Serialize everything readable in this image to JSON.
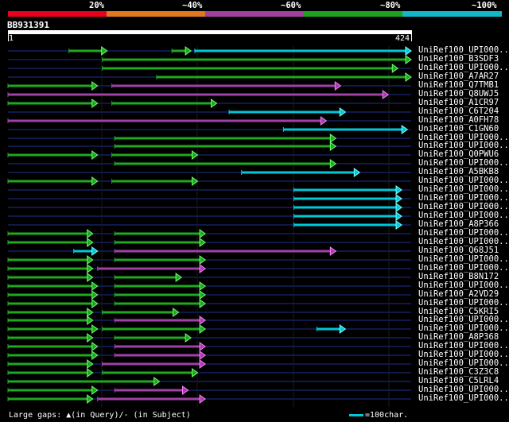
{
  "legend": {
    "labels": [
      "20%",
      "~40%",
      "~60%",
      "~80%",
      "~100%"
    ],
    "colors": [
      "#e8001c",
      "#e07820",
      "#a040a0",
      "#20a020",
      "#10b8c8"
    ]
  },
  "query": {
    "name": "BB931391",
    "start": "1",
    "end": "424",
    "length": 424
  },
  "colors": {
    "c40": "#20a820",
    "c60": "#a040a8",
    "c100": "#00c8d8",
    "track": "#101848",
    "bright40": "#6fff6f",
    "bright60": "#ff80ff",
    "bright100": "#80ffff"
  },
  "hits": [
    {
      "name": "UniRef100_UPI000..",
      "segs": [
        [
          65,
          105,
          "g"
        ],
        [
          173,
          193,
          "g"
        ],
        [
          197,
          424,
          "c"
        ]
      ]
    },
    {
      "name": "UniRef100_B3SDF3",
      "segs": [
        [
          100,
          424,
          "g"
        ]
      ]
    },
    {
      "name": "UniRef100_UPI000..",
      "segs": [
        [
          100,
          410,
          "g"
        ]
      ]
    },
    {
      "name": "UniRef100_A7AR27",
      "segs": [
        [
          157,
          424,
          "g"
        ]
      ]
    },
    {
      "name": "UniRef100_Q7TMB1",
      "segs": [
        [
          1,
          95,
          "g"
        ],
        [
          110,
          350,
          "m"
        ]
      ]
    },
    {
      "name": "UniRef100_Q8UWJ5",
      "segs": [
        [
          1,
          400,
          "m"
        ]
      ]
    },
    {
      "name": "UniRef100_A1CR97",
      "segs": [
        [
          1,
          95,
          "g"
        ],
        [
          110,
          220,
          "g"
        ]
      ]
    },
    {
      "name": "UniRef100_C6T204",
      "segs": [
        [
          233,
          355,
          "c"
        ]
      ]
    },
    {
      "name": "UniRef100_A0FH78",
      "segs": [
        [
          1,
          335,
          "m"
        ]
      ]
    },
    {
      "name": "UniRef100_C1GN60",
      "segs": [
        [
          290,
          420,
          "c"
        ]
      ]
    },
    {
      "name": "UniRef100_UPI000..",
      "segs": [
        [
          113,
          345,
          "g"
        ]
      ]
    },
    {
      "name": "UniRef100_UPI000..",
      "segs": [
        [
          113,
          345,
          "g"
        ]
      ]
    },
    {
      "name": "UniRef100_Q0PWU6",
      "segs": [
        [
          1,
          95,
          "g"
        ],
        [
          110,
          200,
          "g"
        ]
      ]
    },
    {
      "name": "UniRef100_UPI000..",
      "segs": [
        [
          113,
          345,
          "g"
        ]
      ]
    },
    {
      "name": "UniRef100_A5BKB8",
      "segs": [
        [
          246,
          370,
          "c"
        ]
      ]
    },
    {
      "name": "UniRef100_UPI000..",
      "segs": [
        [
          1,
          95,
          "g"
        ],
        [
          110,
          200,
          "g"
        ]
      ]
    },
    {
      "name": "UniRef100_UPI000..",
      "segs": [
        [
          301,
          414,
          "c"
        ]
      ]
    },
    {
      "name": "UniRef100_UPI000..",
      "segs": [
        [
          301,
          414,
          "c"
        ]
      ]
    },
    {
      "name": "UniRef100_UPI000..",
      "segs": [
        [
          301,
          414,
          "c"
        ]
      ]
    },
    {
      "name": "UniRef100_UPI000..",
      "segs": [
        [
          301,
          414,
          "c"
        ]
      ]
    },
    {
      "name": "UniRef100_A8P366",
      "segs": [
        [
          301,
          414,
          "c"
        ]
      ]
    },
    {
      "name": "UniRef100_UPI000..",
      "segs": [
        [
          1,
          90,
          "g"
        ],
        [
          113,
          208,
          "g"
        ]
      ]
    },
    {
      "name": "UniRef100_UPI000..",
      "segs": [
        [
          1,
          90,
          "g"
        ],
        [
          113,
          208,
          "g"
        ]
      ]
    },
    {
      "name": "UniRef100_Q68J51",
      "segs": [
        [
          70,
          95,
          "c"
        ],
        [
          113,
          345,
          "m"
        ]
      ]
    },
    {
      "name": "UniRef100_UPI000..",
      "segs": [
        [
          1,
          90,
          "g"
        ],
        [
          113,
          208,
          "g"
        ]
      ]
    },
    {
      "name": "UniRef100_UPI000..",
      "segs": [
        [
          1,
          90,
          "g"
        ],
        [
          95,
          208,
          "m"
        ]
      ]
    },
    {
      "name": "UniRef100_B8N172",
      "segs": [
        [
          1,
          90,
          "g"
        ],
        [
          113,
          183,
          "g"
        ]
      ]
    },
    {
      "name": "UniRef100_UPI000..",
      "segs": [
        [
          1,
          95,
          "g"
        ],
        [
          113,
          208,
          "g"
        ]
      ]
    },
    {
      "name": "UniRef100_A2VD29",
      "segs": [
        [
          1,
          95,
          "g"
        ],
        [
          113,
          208,
          "g"
        ]
      ]
    },
    {
      "name": "UniRef100_UPI000..",
      "segs": [
        [
          1,
          95,
          "g"
        ],
        [
          113,
          208,
          "g"
        ]
      ]
    },
    {
      "name": "UniRef100_C5KRI5",
      "segs": [
        [
          1,
          90,
          "g"
        ],
        [
          100,
          180,
          "g"
        ]
      ]
    },
    {
      "name": "UniRef100_UPI000..",
      "segs": [
        [
          1,
          90,
          "g"
        ],
        [
          113,
          208,
          "m"
        ]
      ]
    },
    {
      "name": "UniRef100_UPI000..",
      "segs": [
        [
          1,
          95,
          "g"
        ],
        [
          100,
          208,
          "g"
        ],
        [
          325,
          355,
          "c"
        ]
      ]
    },
    {
      "name": "UniRef100_A8P368",
      "segs": [
        [
          1,
          90,
          "g"
        ],
        [
          113,
          193,
          "g"
        ]
      ]
    },
    {
      "name": "UniRef100_UPI000..",
      "segs": [
        [
          1,
          95,
          "g"
        ],
        [
          113,
          208,
          "m"
        ]
      ]
    },
    {
      "name": "UniRef100_UPI000..",
      "segs": [
        [
          1,
          95,
          "g"
        ],
        [
          113,
          208,
          "m"
        ]
      ]
    },
    {
      "name": "UniRef100_UPI000..",
      "segs": [
        [
          1,
          90,
          "g"
        ],
        [
          100,
          208,
          "m"
        ]
      ]
    },
    {
      "name": "UniRef100_C3Z3C8",
      "segs": [
        [
          1,
          90,
          "g"
        ],
        [
          100,
          200,
          "g"
        ]
      ]
    },
    {
      "name": "UniRef100_C5LRL4",
      "segs": [
        [
          1,
          160,
          "g"
        ]
      ]
    },
    {
      "name": "UniRef100_UPI000..",
      "segs": [
        [
          1,
          95,
          "g"
        ],
        [
          113,
          190,
          "m"
        ]
      ]
    },
    {
      "name": "UniRef100_UPI000..",
      "segs": [
        [
          1,
          90,
          "g"
        ],
        [
          95,
          208,
          "m"
        ]
      ]
    }
  ],
  "footer": {
    "gaps": "Large gaps: ▲(in Query)/- (in Subject)",
    "scale": "=100char."
  }
}
